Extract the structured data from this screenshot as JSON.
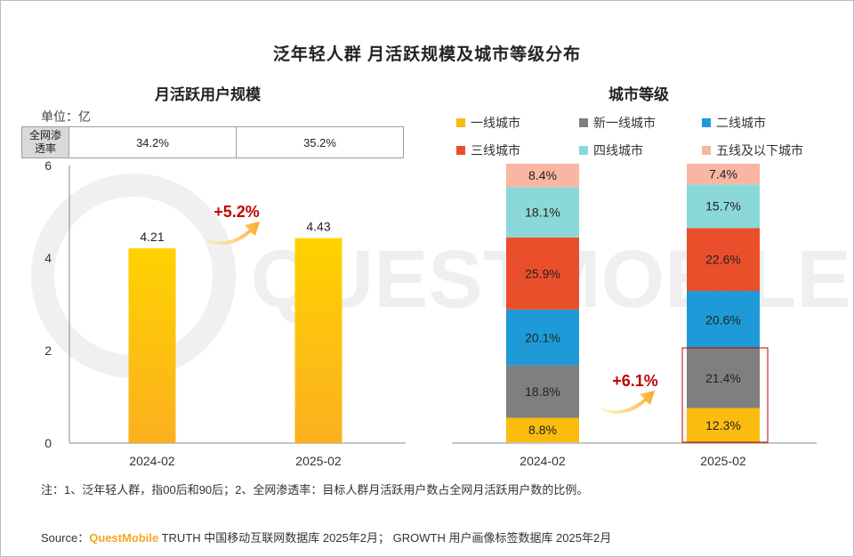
{
  "title": "泛年轻人群 月活跃规模及城市等级分布",
  "left_title": "月活跃用户规模",
  "right_title": "城市等级",
  "unit": "单位：亿",
  "penetration": {
    "header": "全网渗透率",
    "values": [
      "34.2%",
      "35.2%"
    ]
  },
  "watermark": "QUESTMOBILE",
  "note": "注：1、泛年轻人群，指00后和90后；2、全网渗透率：目标人群月活跃用户数占全网月活跃用户数的比例。",
  "source": {
    "prefix": "Source：",
    "brand": "QuestMobile",
    "rest": " TRUTH 中国移动互联网数据库 2025年2月； GROWTH 用户画像标签数据库 2025年2月"
  },
  "chart_data": [
    {
      "type": "bar",
      "title": "月活跃用户规模",
      "categories": [
        "2024-02",
        "2025-02"
      ],
      "values": [
        4.21,
        4.43
      ],
      "value_labels": [
        "4.21",
        "4.43"
      ],
      "yticks": [
        "0",
        "2",
        "4",
        "6"
      ],
      "ylim": [
        0,
        6
      ],
      "growth_label": "+5.2%",
      "color": "#fbbd1a"
    },
    {
      "type": "bar",
      "stacked": true,
      "title": "城市等级",
      "categories": [
        "2024-02",
        "2025-02"
      ],
      "series": [
        {
          "name": "一线城市",
          "color": "#fbbc10",
          "values": [
            8.8,
            12.3
          ],
          "labels": [
            "8.8%",
            "12.3%"
          ]
        },
        {
          "name": "新一线城市",
          "color": "#7f7f7f",
          "values": [
            18.8,
            21.4
          ],
          "labels": [
            "18.8%",
            "21.4%"
          ]
        },
        {
          "name": "二线城市",
          "color": "#1f9ad9",
          "values": [
            20.1,
            20.6
          ],
          "labels": [
            "20.1%",
            "20.6%"
          ]
        },
        {
          "name": "三线城市",
          "color": "#ea4f2b",
          "values": [
            25.9,
            22.6
          ],
          "labels": [
            "25.9%",
            "22.6%"
          ]
        },
        {
          "name": "四线城市",
          "color": "#8bd8d8",
          "values": [
            18.1,
            15.7
          ],
          "labels": [
            "18.1%",
            "15.7%"
          ]
        },
        {
          "name": "五线及以下城市",
          "color": "#f9b6a2",
          "values": [
            8.4,
            7.4
          ],
          "labels": [
            "8.4%",
            "7.4%"
          ]
        }
      ],
      "growth_label": "+6.1%",
      "legend_position": "top"
    }
  ]
}
